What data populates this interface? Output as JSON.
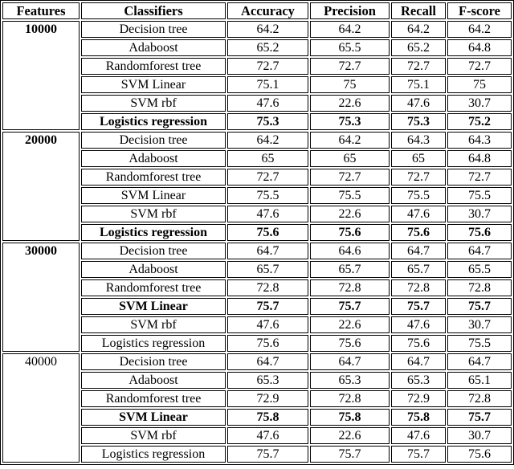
{
  "table": {
    "columns": [
      "Features",
      "Classifiers",
      "Accuracy",
      "Precision",
      "Recall",
      "F-score"
    ],
    "groups": [
      {
        "features": "10000",
        "features_bold": true,
        "rows": [
          {
            "classifier": "Decision tree",
            "bold": false,
            "values": [
              "64.2",
              "64.2",
              "64.2",
              "64.2"
            ]
          },
          {
            "classifier": "Adaboost",
            "bold": false,
            "values": [
              "65.2",
              "65.5",
              "65.2",
              "64.8"
            ]
          },
          {
            "classifier": "Randomforest tree",
            "bold": false,
            "values": [
              "72.7",
              "72.7",
              "72.7",
              "72.7"
            ]
          },
          {
            "classifier": "SVM Linear",
            "bold": false,
            "values": [
              "75.1",
              "75",
              "75.1",
              "75"
            ]
          },
          {
            "classifier": "SVM rbf",
            "bold": false,
            "values": [
              "47.6",
              "22.6",
              "47.6",
              "30.7"
            ]
          },
          {
            "classifier": "Logistics regression",
            "bold": true,
            "values": [
              "75.3",
              "75.3",
              "75.3",
              "75.2"
            ]
          }
        ]
      },
      {
        "features": "20000",
        "features_bold": true,
        "rows": [
          {
            "classifier": "Decision tree",
            "bold": false,
            "values": [
              "64.2",
              "64.2",
              "64.3",
              "64.3"
            ]
          },
          {
            "classifier": "Adaboost",
            "bold": false,
            "values": [
              "65",
              "65",
              "65",
              "64.8"
            ]
          },
          {
            "classifier": "Randomforest tree",
            "bold": false,
            "values": [
              "72.7",
              "72.7",
              "72.7",
              "72.7"
            ]
          },
          {
            "classifier": "SVM Linear",
            "bold": false,
            "values": [
              "75.5",
              "75.5",
              "75.5",
              "75.5"
            ]
          },
          {
            "classifier": "SVM rbf",
            "bold": false,
            "values": [
              "47.6",
              "22.6",
              "47.6",
              "30.7"
            ]
          },
          {
            "classifier": "Logistics regression",
            "bold": true,
            "values": [
              "75.6",
              "75.6",
              "75.6",
              "75.6"
            ]
          }
        ]
      },
      {
        "features": "30000",
        "features_bold": true,
        "rows": [
          {
            "classifier": "Decision tree",
            "bold": false,
            "values": [
              "64.7",
              "64.6",
              "64.7",
              "64.7"
            ]
          },
          {
            "classifier": "Adaboost",
            "bold": false,
            "values": [
              "65.7",
              "65.7",
              "65.7",
              "65.5"
            ]
          },
          {
            "classifier": "Randomforest tree",
            "bold": false,
            "values": [
              "72.8",
              "72.8",
              "72.8",
              "72.8"
            ]
          },
          {
            "classifier": "SVM Linear",
            "bold": true,
            "values": [
              "75.7",
              "75.7",
              "75.7",
              "75.7"
            ]
          },
          {
            "classifier": "SVM rbf",
            "bold": false,
            "values": [
              "47.6",
              "22.6",
              "47.6",
              "30.7"
            ]
          },
          {
            "classifier": "Logistics regression",
            "bold": false,
            "values": [
              "75.6",
              "75.6",
              "75.6",
              "75.5"
            ]
          }
        ]
      },
      {
        "features": "40000",
        "features_bold": false,
        "rows": [
          {
            "classifier": "Decision tree",
            "bold": false,
            "values": [
              "64.7",
              "64.7",
              "64.7",
              "64.7"
            ]
          },
          {
            "classifier": "Adaboost",
            "bold": false,
            "values": [
              "65.3",
              "65.3",
              "65.3",
              "65.1"
            ]
          },
          {
            "classifier": "Randomforest tree",
            "bold": false,
            "values": [
              "72.9",
              "72.8",
              "72.9",
              "72.8"
            ]
          },
          {
            "classifier": "SVM Linear",
            "bold": true,
            "values": [
              "75.8",
              "75.8",
              "75.8",
              "75.7"
            ]
          },
          {
            "classifier": "SVM rbf",
            "bold": false,
            "values": [
              "47.6",
              "22.6",
              "47.6",
              "30.7"
            ]
          },
          {
            "classifier": "Logistics regression",
            "bold": false,
            "values": [
              "75.7",
              "75.7",
              "75.7",
              "75.6"
            ]
          }
        ]
      }
    ],
    "colors": {
      "border": "#000000",
      "text": "#000000",
      "background": "#ffffff"
    }
  }
}
